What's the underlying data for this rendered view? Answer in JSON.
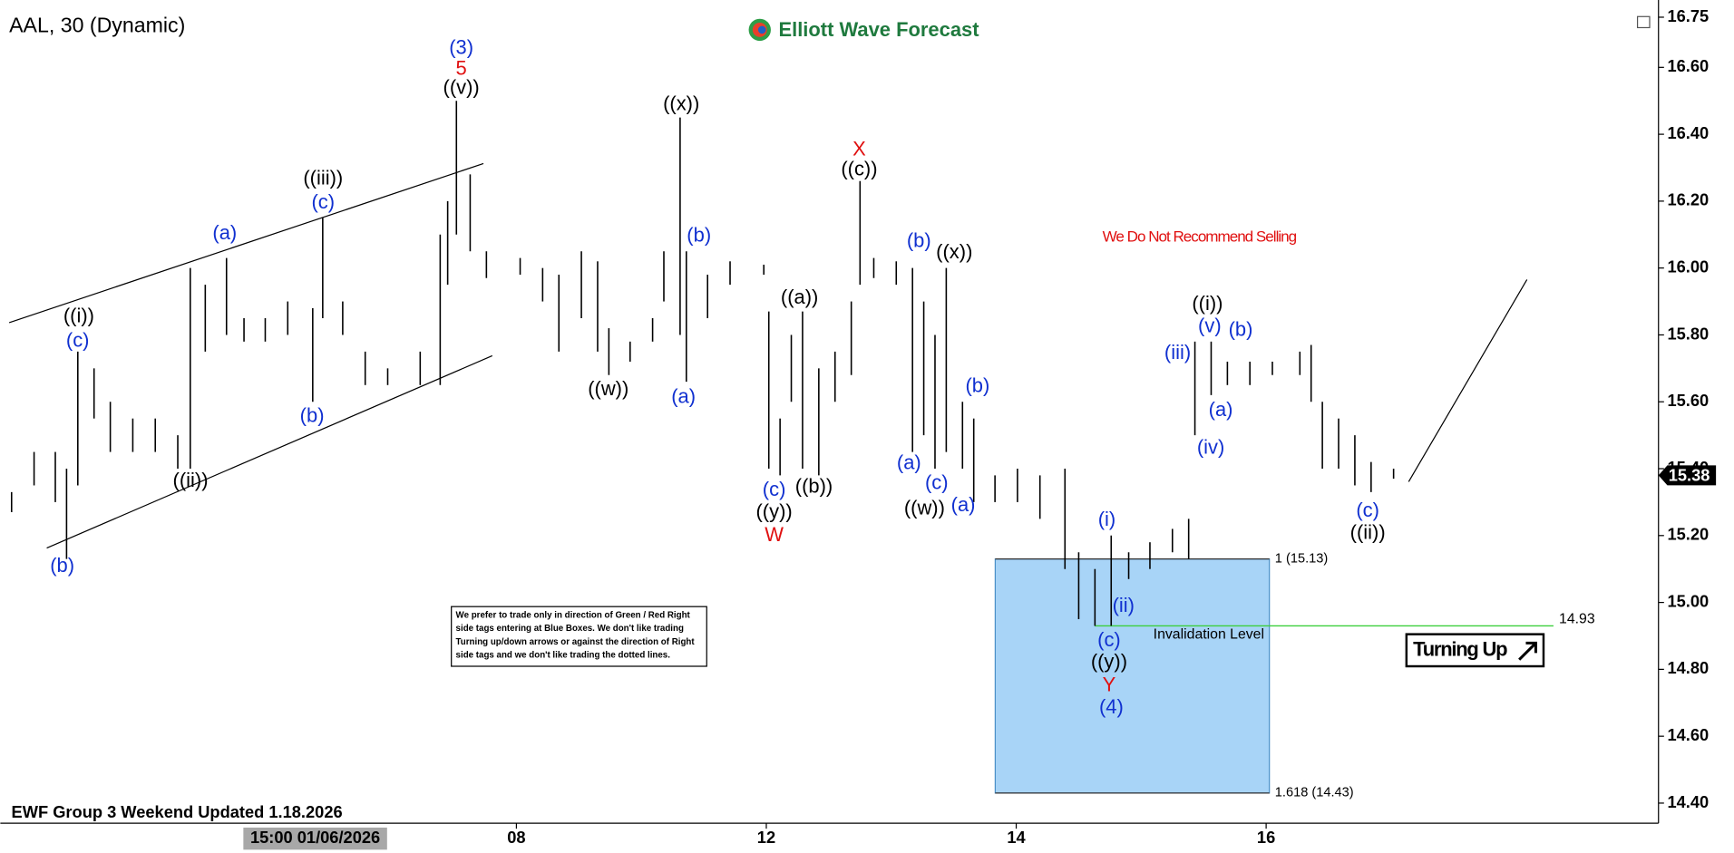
{
  "chart_data": {
    "type": "ohlc",
    "title": "AAL, 30 (Dynamic)",
    "brand": "Elliott Wave Forecast",
    "footer": "EWF Group 3 Weekend Updated 1.18.2026",
    "warning": "We Do Not Recommend Selling",
    "note_lines": [
      "We prefer to trade only in direction of Green / Red Right",
      "side tags entering at Blue Boxes. We don't like trading",
      "Turning up/down arrows or against the direction of Right",
      "side tags and we don't like trading the dotted lines."
    ],
    "signal": "Turning Up",
    "cursor_label": {
      "value": 6.39,
      "label": "15:00 01/06/2026"
    },
    "color": "#000000",
    "x": [
      3.96,
      4.14,
      4.31,
      4.4,
      4.49,
      4.62,
      4.75,
      4.93,
      5.11,
      5.29,
      5.39,
      5.51,
      5.68,
      5.82,
      5.99,
      6.17,
      6.37,
      6.45,
      6.61,
      6.79,
      6.97,
      7.23,
      7.39,
      7.45,
      7.52,
      7.63,
      7.76,
      8.03,
      8.21,
      8.34,
      8.52,
      8.65,
      8.74,
      8.91,
      9.09,
      9.18,
      9.31,
      9.36,
      9.53,
      9.71,
      9.98,
      10.02,
      10.11,
      10.2,
      10.29,
      10.42,
      10.55,
      10.68,
      10.75,
      10.86,
      11.04,
      11.17,
      11.26,
      11.35,
      11.44,
      11.57,
      11.66,
      11.83,
      12.01,
      12.19,
      12.39,
      12.5,
      12.63,
      12.76,
      12.9,
      13.07,
      13.25,
      13.38,
      13.43,
      13.56,
      13.69,
      13.87,
      14.05,
      14.27,
      14.36,
      14.45,
      14.58,
      14.71,
      14.84,
      15.02
    ],
    "high": [
      15.33,
      15.45,
      15.45,
      15.4,
      15.75,
      15.7,
      15.6,
      15.55,
      15.55,
      15.5,
      16.0,
      15.95,
      16.03,
      15.85,
      15.85,
      15.9,
      15.88,
      16.15,
      15.9,
      15.75,
      15.7,
      15.75,
      16.1,
      16.2,
      16.5,
      16.28,
      16.05,
      16.03,
      16.0,
      15.98,
      16.05,
      16.02,
      15.82,
      15.78,
      15.85,
      16.05,
      16.45,
      16.05,
      15.98,
      16.02,
      16.01,
      15.87,
      15.55,
      15.8,
      15.87,
      15.7,
      15.75,
      15.9,
      16.26,
      16.03,
      16.02,
      16.0,
      15.9,
      15.8,
      16.0,
      15.6,
      15.55,
      15.38,
      15.4,
      15.38,
      15.4,
      15.15,
      15.1,
      15.2,
      15.15,
      15.18,
      15.22,
      15.25,
      15.78,
      15.78,
      15.72,
      15.72,
      15.72,
      15.75,
      15.77,
      15.6,
      15.55,
      15.5,
      15.42,
      15.4
    ],
    "low": [
      15.27,
      15.35,
      15.3,
      15.13,
      15.35,
      15.55,
      15.45,
      15.45,
      15.45,
      15.4,
      15.4,
      15.75,
      15.8,
      15.78,
      15.78,
      15.8,
      15.6,
      15.85,
      15.8,
      15.65,
      15.65,
      15.65,
      15.65,
      15.95,
      16.1,
      16.05,
      15.97,
      15.98,
      15.9,
      15.75,
      15.85,
      15.75,
      15.68,
      15.72,
      15.78,
      15.9,
      15.8,
      15.66,
      15.85,
      15.95,
      15.98,
      15.4,
      15.38,
      15.6,
      15.4,
      15.38,
      15.6,
      15.68,
      15.95,
      15.97,
      15.95,
      15.45,
      15.5,
      15.4,
      15.45,
      15.4,
      15.3,
      15.3,
      15.3,
      15.25,
      15.1,
      14.95,
      14.93,
      14.93,
      15.07,
      15.1,
      15.15,
      15.13,
      15.5,
      15.62,
      15.65,
      15.65,
      15.68,
      15.68,
      15.6,
      15.4,
      15.4,
      15.35,
      15.33,
      15.37
    ],
    "xlim": [
      3.87,
      17.14
    ],
    "xticks": [
      {
        "value": 8,
        "label": "08"
      },
      {
        "value": 10,
        "label": "12"
      },
      {
        "value": 12,
        "label": "14"
      },
      {
        "value": 14,
        "label": "16"
      }
    ],
    "ylim": [
      14.34,
      16.775
    ],
    "yticks": [
      {
        "value": 14.4,
        "label": "14.40"
      },
      {
        "value": 14.6,
        "label": "14.60"
      },
      {
        "value": 14.8,
        "label": "14.80"
      },
      {
        "value": 15.0,
        "label": "15.00"
      },
      {
        "value": 15.2,
        "label": "15.20"
      },
      {
        "value": 15.4,
        "label": "15.40"
      },
      {
        "value": 15.6,
        "label": "15.60"
      },
      {
        "value": 15.8,
        "label": "15.80"
      },
      {
        "value": 16.0,
        "label": "16.00"
      },
      {
        "value": 16.2,
        "label": "16.20"
      },
      {
        "value": 16.4,
        "label": "16.40"
      },
      {
        "value": 16.6,
        "label": "16.60"
      },
      {
        "value": 16.75,
        "label": "16.75"
      }
    ],
    "last_price": {
      "value": 15.38,
      "label": "15.38"
    },
    "box_levels": [
      {
        "value": 15.13,
        "label": "1 (15.13)"
      },
      {
        "value": 14.43,
        "label": "1.618 (14.43)"
      }
    ],
    "invalidation": {
      "value": 14.93,
      "label": "14.93",
      "text": "Invalidation Level"
    },
    "box_color": "#a8d4f7",
    "invalidation_color": "#3ccf3c",
    "annotations": [
      {
        "text": "(3)",
        "color": "#1030d0"
      },
      {
        "text": "5",
        "color": "#e01010"
      },
      {
        "text": "((v))",
        "color": "#000"
      },
      {
        "text": "((x))",
        "color": "#000"
      },
      {
        "text": "X",
        "color": "#e01010"
      },
      {
        "text": "((c))",
        "color": "#000"
      },
      {
        "text": "((iii))",
        "color": "#000"
      },
      {
        "text": "(c)",
        "color": "#1030d0"
      },
      {
        "text": "(a)",
        "color": "#1030d0"
      },
      {
        "text": "((i))",
        "color": "#000"
      },
      {
        "text": "(c)",
        "color": "#1030d0"
      },
      {
        "text": "(b)",
        "color": "#1030d0"
      },
      {
        "text": "(b)",
        "color": "#1030d0"
      },
      {
        "text": "((ii))",
        "color": "#000"
      },
      {
        "text": "(b)",
        "color": "#1030d0"
      },
      {
        "text": "(a)",
        "color": "#1030d0"
      },
      {
        "text": "((w))",
        "color": "#000"
      },
      {
        "text": "((a))",
        "color": "#000"
      },
      {
        "text": "((b))",
        "color": "#000"
      },
      {
        "text": "(c)",
        "color": "#1030d0"
      },
      {
        "text": "((y))",
        "color": "#000"
      },
      {
        "text": "W",
        "color": "#e01010"
      },
      {
        "text": "(b)",
        "color": "#1030d0"
      },
      {
        "text": "((x))",
        "color": "#000"
      },
      {
        "text": "(b)",
        "color": "#1030d0"
      },
      {
        "text": "(a)",
        "color": "#1030d0"
      },
      {
        "text": "(c)",
        "color": "#1030d0"
      },
      {
        "text": "(a)",
        "color": "#1030d0"
      },
      {
        "text": "((w))",
        "color": "#000"
      },
      {
        "text": "(i)",
        "color": "#1030d0"
      },
      {
        "text": "(ii)",
        "color": "#1030d0"
      },
      {
        "text": "(c)",
        "color": "#1030d0"
      },
      {
        "text": "((y))",
        "color": "#000"
      },
      {
        "text": "Y",
        "color": "#e01010"
      },
      {
        "text": "(4)",
        "color": "#1030d0"
      },
      {
        "text": "((i))",
        "color": "#000"
      },
      {
        "text": "(v)",
        "color": "#1030d0"
      },
      {
        "text": "(b)",
        "color": "#1030d0"
      },
      {
        "text": "(iii)",
        "color": "#1030d0"
      },
      {
        "text": "(a)",
        "color": "#1030d0"
      },
      {
        "text": "(iv)",
        "color": "#1030d0"
      },
      {
        "text": "(c)",
        "color": "#1030d0"
      },
      {
        "text": "((ii))",
        "color": "#000"
      }
    ]
  }
}
